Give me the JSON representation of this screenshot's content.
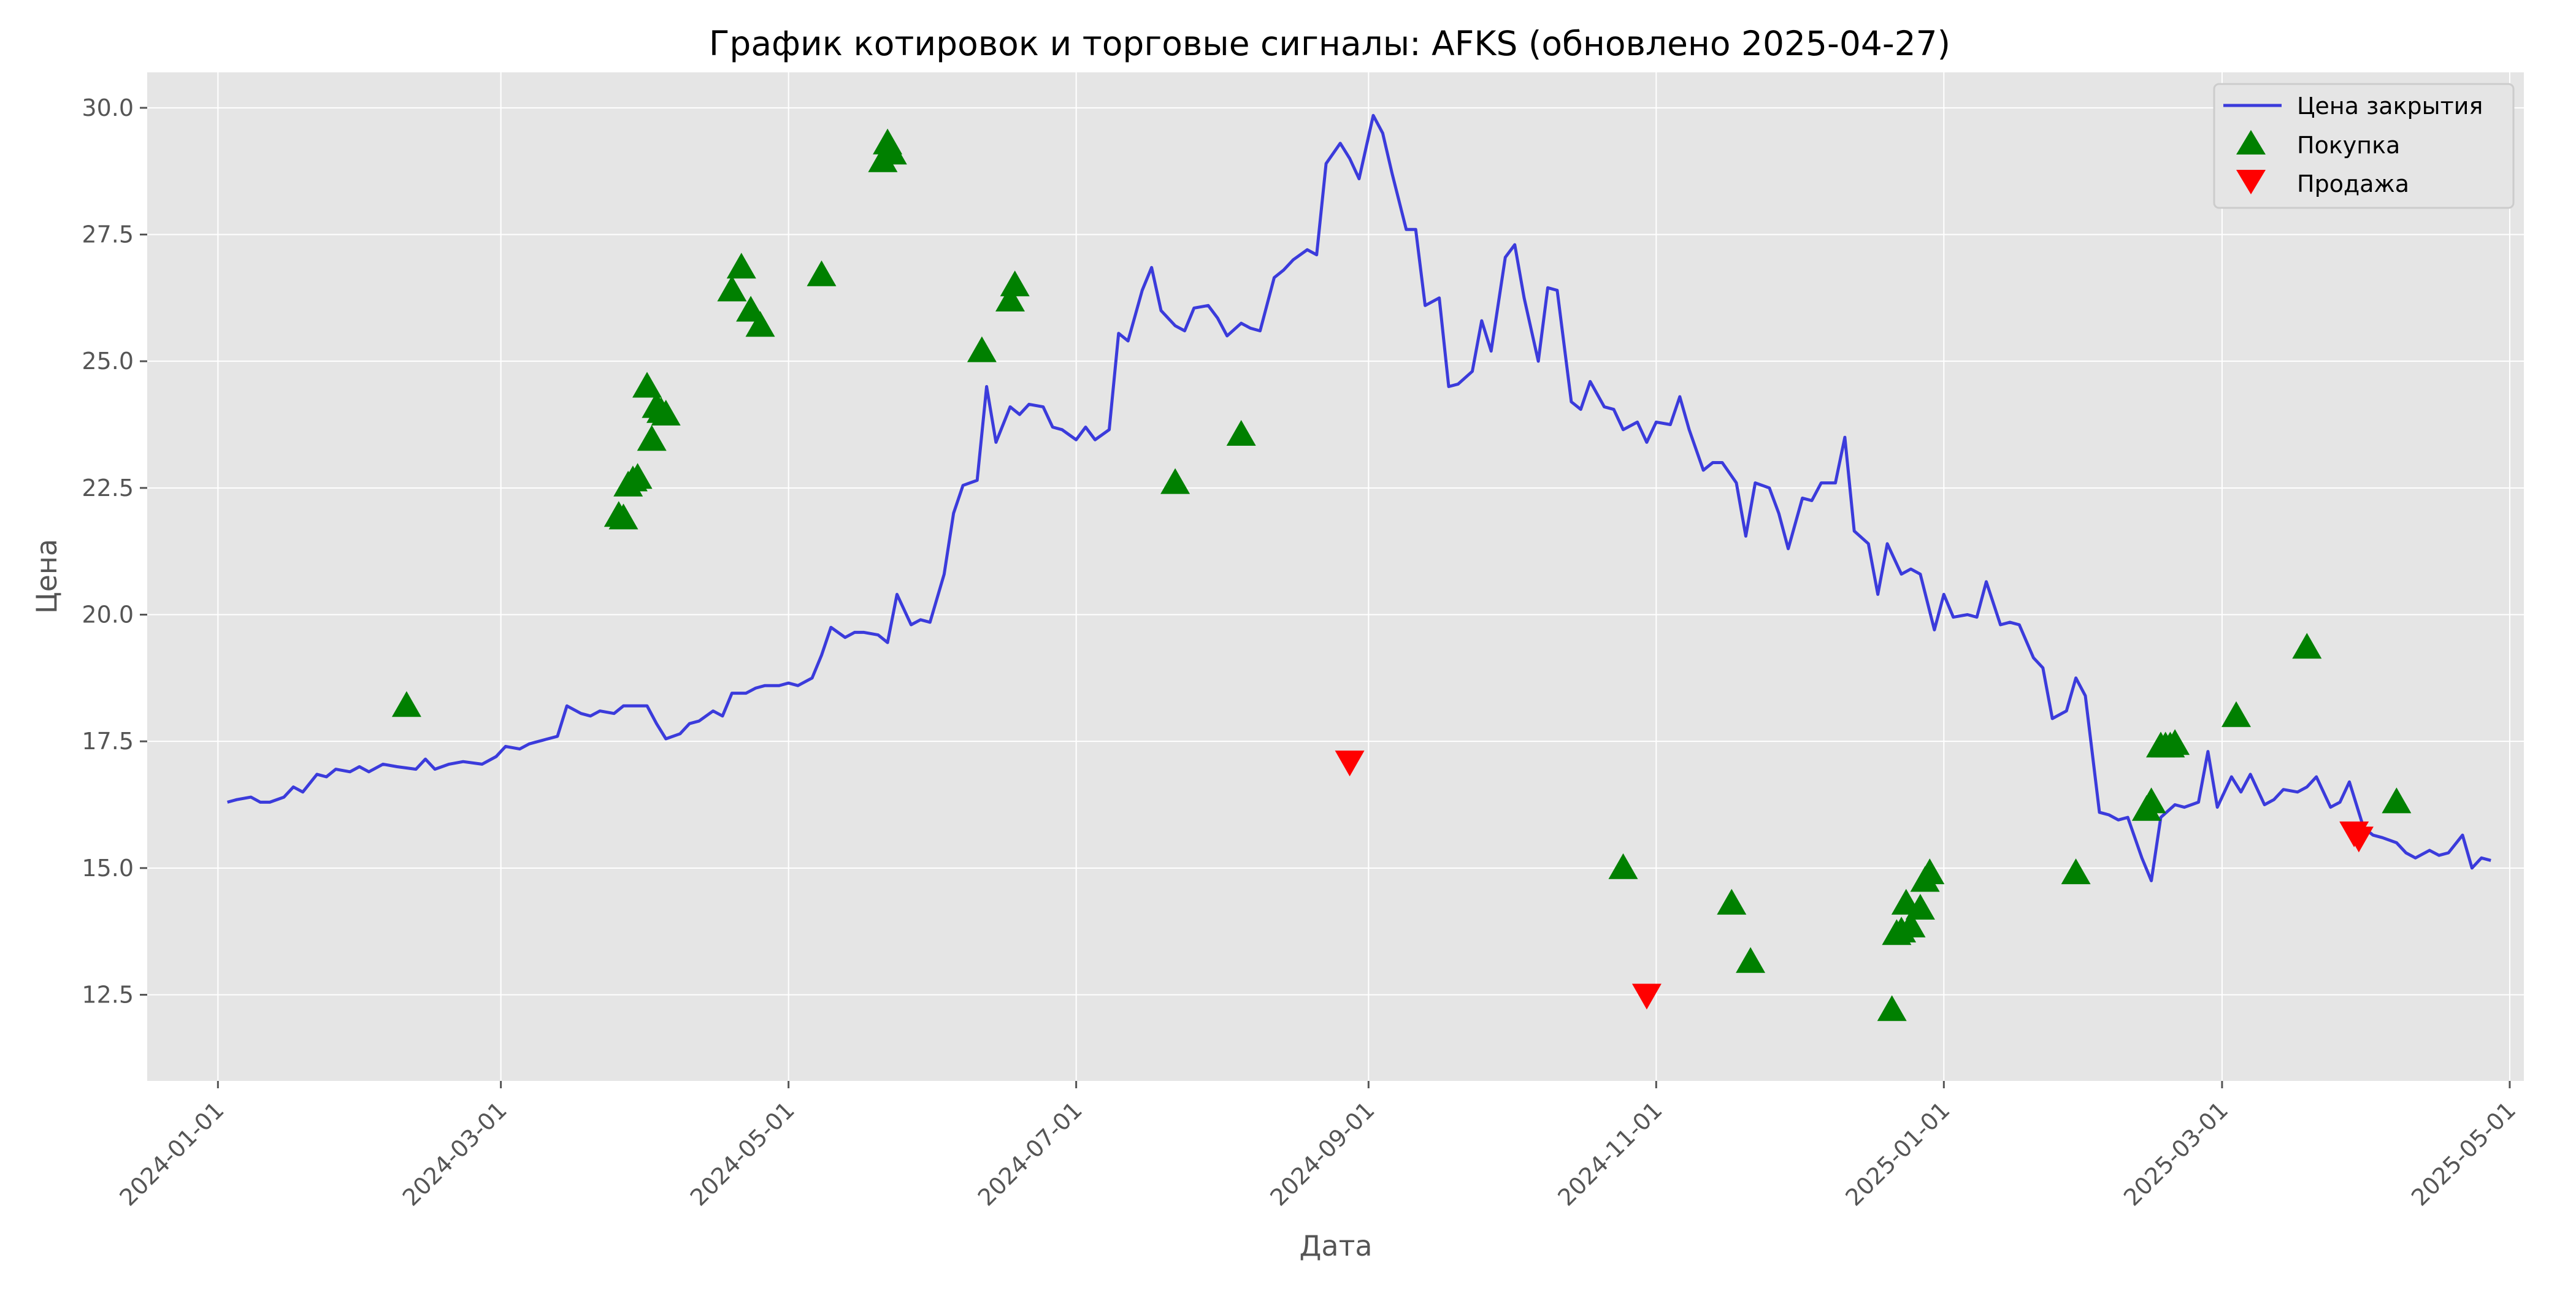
{
  "chart_data": {
    "type": "line",
    "title": "График котировок и торговые сигналы: AFKS (обновлено 2025-04-27)",
    "xlabel": "Дата",
    "ylabel": "Цена",
    "x_type": "date",
    "xlim": [
      "2023-12-17",
      "2025-05-04"
    ],
    "ylim": [
      10.8,
      30.7
    ],
    "x_ticks": [
      "2024-01-01",
      "2024-03-01",
      "2024-05-01",
      "2024-07-01",
      "2024-09-01",
      "2024-11-01",
      "2025-01-01",
      "2025-03-01",
      "2025-05-01"
    ],
    "y_ticks": [
      "12.5",
      "15.0",
      "17.5",
      "20.0",
      "22.5",
      "25.0",
      "27.5",
      "30.0"
    ],
    "grid": true,
    "legend_position": "top-right",
    "series": [
      {
        "name": "Цена закрытия",
        "color": "#3b3bdb",
        "points": [
          [
            "2024-01-03",
            16.3
          ],
          [
            "2024-01-05",
            16.35
          ],
          [
            "2024-01-08",
            16.4
          ],
          [
            "2024-01-10",
            16.3
          ],
          [
            "2024-01-12",
            16.3
          ],
          [
            "2024-01-15",
            16.4
          ],
          [
            "2024-01-17",
            16.6
          ],
          [
            "2024-01-19",
            16.5
          ],
          [
            "2024-01-22",
            16.85
          ],
          [
            "2024-01-24",
            16.8
          ],
          [
            "2024-01-26",
            16.95
          ],
          [
            "2024-01-29",
            16.9
          ],
          [
            "2024-01-31",
            17.0
          ],
          [
            "2024-02-02",
            16.9
          ],
          [
            "2024-02-05",
            17.05
          ],
          [
            "2024-02-08",
            17.0
          ],
          [
            "2024-02-12",
            16.95
          ],
          [
            "2024-02-14",
            17.15
          ],
          [
            "2024-02-16",
            16.95
          ],
          [
            "2024-02-19",
            17.05
          ],
          [
            "2024-02-22",
            17.1
          ],
          [
            "2024-02-26",
            17.05
          ],
          [
            "2024-02-29",
            17.2
          ],
          [
            "2024-03-02",
            17.4
          ],
          [
            "2024-03-05",
            17.35
          ],
          [
            "2024-03-07",
            17.45
          ],
          [
            "2024-03-11",
            17.55
          ],
          [
            "2024-03-13",
            17.6
          ],
          [
            "2024-03-15",
            18.2
          ],
          [
            "2024-03-18",
            18.05
          ],
          [
            "2024-03-20",
            18.0
          ],
          [
            "2024-03-22",
            18.1
          ],
          [
            "2024-03-25",
            18.05
          ],
          [
            "2024-03-27",
            18.2
          ],
          [
            "2024-04-01",
            18.2
          ],
          [
            "2024-04-03",
            17.85
          ],
          [
            "2024-04-05",
            17.55
          ],
          [
            "2024-04-08",
            17.65
          ],
          [
            "2024-04-10",
            17.85
          ],
          [
            "2024-04-12",
            17.9
          ],
          [
            "2024-04-15",
            18.1
          ],
          [
            "2024-04-17",
            18.0
          ],
          [
            "2024-04-19",
            18.45
          ],
          [
            "2024-04-22",
            18.45
          ],
          [
            "2024-04-24",
            18.55
          ],
          [
            "2024-04-26",
            18.6
          ],
          [
            "2024-04-29",
            18.6
          ],
          [
            "2024-05-01",
            18.65
          ],
          [
            "2024-05-03",
            18.6
          ],
          [
            "2024-05-06",
            18.75
          ],
          [
            "2024-05-08",
            19.2
          ],
          [
            "2024-05-10",
            19.75
          ],
          [
            "2024-05-13",
            19.55
          ],
          [
            "2024-05-15",
            19.65
          ],
          [
            "2024-05-17",
            19.65
          ],
          [
            "2024-05-20",
            19.6
          ],
          [
            "2024-05-22",
            19.45
          ],
          [
            "2024-05-24",
            20.4
          ],
          [
            "2024-05-27",
            19.8
          ],
          [
            "2024-05-29",
            19.9
          ],
          [
            "2024-05-31",
            19.85
          ],
          [
            "2024-06-03",
            20.8
          ],
          [
            "2024-06-05",
            22.0
          ],
          [
            "2024-06-07",
            22.55
          ],
          [
            "2024-06-10",
            22.65
          ],
          [
            "2024-06-12",
            24.5
          ],
          [
            "2024-06-14",
            23.4
          ],
          [
            "2024-06-17",
            24.1
          ],
          [
            "2024-06-19",
            23.95
          ],
          [
            "2024-06-21",
            24.15
          ],
          [
            "2024-06-24",
            24.1
          ],
          [
            "2024-06-26",
            23.7
          ],
          [
            "2024-06-28",
            23.65
          ],
          [
            "2024-07-01",
            23.45
          ],
          [
            "2024-07-03",
            23.7
          ],
          [
            "2024-07-05",
            23.45
          ],
          [
            "2024-07-08",
            23.65
          ],
          [
            "2024-07-10",
            25.55
          ],
          [
            "2024-07-12",
            25.4
          ],
          [
            "2024-07-15",
            26.4
          ],
          [
            "2024-07-17",
            26.85
          ],
          [
            "2024-07-19",
            26.0
          ],
          [
            "2024-07-22",
            25.7
          ],
          [
            "2024-07-24",
            25.6
          ],
          [
            "2024-07-26",
            26.05
          ],
          [
            "2024-07-29",
            26.1
          ],
          [
            "2024-07-31",
            25.85
          ],
          [
            "2024-08-02",
            25.5
          ],
          [
            "2024-08-05",
            25.75
          ],
          [
            "2024-08-07",
            25.65
          ],
          [
            "2024-08-09",
            25.6
          ],
          [
            "2024-08-12",
            26.65
          ],
          [
            "2024-08-14",
            26.8
          ],
          [
            "2024-08-16",
            27.0
          ],
          [
            "2024-08-19",
            27.2
          ],
          [
            "2024-08-21",
            27.1
          ],
          [
            "2024-08-23",
            28.9
          ],
          [
            "2024-08-26",
            29.3
          ],
          [
            "2024-08-28",
            29.0
          ],
          [
            "2024-08-30",
            28.6
          ],
          [
            "2024-09-02",
            29.85
          ],
          [
            "2024-09-04",
            29.5
          ],
          [
            "2024-09-06",
            28.7
          ],
          [
            "2024-09-09",
            27.6
          ],
          [
            "2024-09-11",
            27.6
          ],
          [
            "2024-09-13",
            26.1
          ],
          [
            "2024-09-16",
            26.25
          ],
          [
            "2024-09-18",
            24.5
          ],
          [
            "2024-09-20",
            24.55
          ],
          [
            "2024-09-23",
            24.8
          ],
          [
            "2024-09-25",
            25.8
          ],
          [
            "2024-09-27",
            25.2
          ],
          [
            "2024-09-30",
            27.05
          ],
          [
            "2024-10-02",
            27.3
          ],
          [
            "2024-10-04",
            26.25
          ],
          [
            "2024-10-07",
            25.0
          ],
          [
            "2024-10-09",
            26.45
          ],
          [
            "2024-10-11",
            26.4
          ],
          [
            "2024-10-14",
            24.2
          ],
          [
            "2024-10-16",
            24.05
          ],
          [
            "2024-10-18",
            24.6
          ],
          [
            "2024-10-21",
            24.1
          ],
          [
            "2024-10-23",
            24.05
          ],
          [
            "2024-10-25",
            23.65
          ],
          [
            "2024-10-28",
            23.8
          ],
          [
            "2024-10-30",
            23.4
          ],
          [
            "2024-11-01",
            23.8
          ],
          [
            "2024-11-04",
            23.75
          ],
          [
            "2024-11-06",
            24.3
          ],
          [
            "2024-11-08",
            23.65
          ],
          [
            "2024-11-11",
            22.85
          ],
          [
            "2024-11-13",
            23.0
          ],
          [
            "2024-11-15",
            23.0
          ],
          [
            "2024-11-18",
            22.6
          ],
          [
            "2024-11-20",
            21.55
          ],
          [
            "2024-11-22",
            22.6
          ],
          [
            "2024-11-25",
            22.5
          ],
          [
            "2024-11-27",
            22.0
          ],
          [
            "2024-11-29",
            21.3
          ],
          [
            "2024-12-02",
            22.3
          ],
          [
            "2024-12-04",
            22.25
          ],
          [
            "2024-12-06",
            22.6
          ],
          [
            "2024-12-09",
            22.6
          ],
          [
            "2024-12-11",
            23.5
          ],
          [
            "2024-12-13",
            21.65
          ],
          [
            "2024-12-16",
            21.4
          ],
          [
            "2024-12-18",
            20.4
          ],
          [
            "2024-12-20",
            21.4
          ],
          [
            "2024-12-23",
            20.8
          ],
          [
            "2024-12-25",
            20.9
          ],
          [
            "2024-12-27",
            20.8
          ],
          [
            "2024-12-30",
            19.7
          ],
          [
            "2025-01-01",
            20.4
          ],
          [
            "2025-01-03",
            19.95
          ],
          [
            "2025-01-06",
            20.0
          ],
          [
            "2025-01-08",
            19.95
          ],
          [
            "2025-01-10",
            20.65
          ],
          [
            "2025-01-13",
            19.8
          ],
          [
            "2025-01-15",
            19.85
          ],
          [
            "2025-01-17",
            19.8
          ],
          [
            "2025-01-20",
            19.15
          ],
          [
            "2025-01-22",
            18.95
          ],
          [
            "2025-01-24",
            17.95
          ],
          [
            "2025-01-27",
            18.1
          ],
          [
            "2025-01-29",
            18.75
          ],
          [
            "2025-01-31",
            18.4
          ],
          [
            "2025-02-03",
            16.1
          ],
          [
            "2025-02-05",
            16.05
          ],
          [
            "2025-02-07",
            15.95
          ],
          [
            "2025-02-09",
            16.0
          ],
          [
            "2025-02-12",
            15.2
          ],
          [
            "2025-02-14",
            14.75
          ],
          [
            "2025-02-16",
            16.0
          ],
          [
            "2025-02-19",
            16.25
          ],
          [
            "2025-02-21",
            16.2
          ],
          [
            "2025-02-24",
            16.3
          ],
          [
            "2025-02-26",
            17.3
          ],
          [
            "2025-02-28",
            16.2
          ],
          [
            "2025-03-03",
            16.8
          ],
          [
            "2025-03-05",
            16.5
          ],
          [
            "2025-03-07",
            16.85
          ],
          [
            "2025-03-10",
            16.25
          ],
          [
            "2025-03-12",
            16.35
          ],
          [
            "2025-03-14",
            16.55
          ],
          [
            "2025-03-17",
            16.5
          ],
          [
            "2025-03-19",
            16.6
          ],
          [
            "2025-03-21",
            16.8
          ],
          [
            "2025-03-24",
            16.2
          ],
          [
            "2025-03-26",
            16.3
          ],
          [
            "2025-03-28",
            16.7
          ],
          [
            "2025-03-31",
            15.8
          ],
          [
            "2025-04-02",
            15.65
          ],
          [
            "2025-04-04",
            15.6
          ],
          [
            "2025-04-07",
            15.5
          ],
          [
            "2025-04-09",
            15.3
          ],
          [
            "2025-04-11",
            15.2
          ],
          [
            "2025-04-14",
            15.35
          ],
          [
            "2025-04-16",
            15.25
          ],
          [
            "2025-04-18",
            15.3
          ],
          [
            "2025-04-21",
            15.65
          ],
          [
            "2025-04-23",
            15.0
          ],
          [
            "2025-04-25",
            15.2
          ],
          [
            "2025-04-27",
            15.15
          ]
        ]
      }
    ],
    "signals": [
      {
        "name": "Покупка",
        "marker": "triangle-up",
        "color": "#008000",
        "points": [
          [
            "2024-02-10",
            18.2
          ],
          [
            "2024-03-26",
            21.95
          ],
          [
            "2024-03-27",
            21.9
          ],
          [
            "2024-03-28",
            22.55
          ],
          [
            "2024-03-29",
            22.65
          ],
          [
            "2024-03-30",
            22.7
          ],
          [
            "2024-04-01",
            24.5
          ],
          [
            "2024-04-02",
            23.45
          ],
          [
            "2024-04-03",
            24.1
          ],
          [
            "2024-04-04",
            24.0
          ],
          [
            "2024-04-05",
            23.95
          ],
          [
            "2024-04-19",
            26.4
          ],
          [
            "2024-04-21",
            26.85
          ],
          [
            "2024-04-23",
            26.0
          ],
          [
            "2024-04-25",
            25.7
          ],
          [
            "2024-05-08",
            26.7
          ],
          [
            "2024-05-21",
            28.95
          ],
          [
            "2024-05-22",
            29.3
          ],
          [
            "2024-05-23",
            29.1
          ],
          [
            "2024-06-11",
            25.2
          ],
          [
            "2024-06-17",
            26.2
          ],
          [
            "2024-06-18",
            26.5
          ],
          [
            "2024-07-22",
            22.6
          ],
          [
            "2024-08-05",
            23.55
          ],
          [
            "2024-10-25",
            15.0
          ],
          [
            "2024-11-17",
            14.3
          ],
          [
            "2024-11-21",
            13.15
          ],
          [
            "2024-12-21",
            12.2
          ],
          [
            "2024-12-22",
            13.7
          ],
          [
            "2024-12-23",
            13.75
          ],
          [
            "2024-12-24",
            14.3
          ],
          [
            "2024-12-25",
            13.85
          ],
          [
            "2024-12-27",
            14.2
          ],
          [
            "2024-12-28",
            14.75
          ],
          [
            "2024-12-29",
            14.9
          ],
          [
            "2025-01-29",
            14.9
          ],
          [
            "2025-02-13",
            16.15
          ],
          [
            "2025-02-14",
            16.3
          ],
          [
            "2025-02-16",
            17.4
          ],
          [
            "2025-02-17",
            17.4
          ],
          [
            "2025-02-18",
            17.4
          ],
          [
            "2025-02-19",
            17.45
          ],
          [
            "2025-03-04",
            18.0
          ],
          [
            "2025-03-19",
            19.35
          ],
          [
            "2025-04-07",
            16.3
          ]
        ]
      },
      {
        "name": "Продажа",
        "marker": "triangle-down",
        "color": "#ff0000",
        "points": [
          [
            "2024-08-28",
            17.1
          ],
          [
            "2024-10-30",
            12.5
          ],
          [
            "2025-03-29",
            15.7
          ],
          [
            "2025-03-30",
            15.6
          ]
        ]
      }
    ]
  }
}
